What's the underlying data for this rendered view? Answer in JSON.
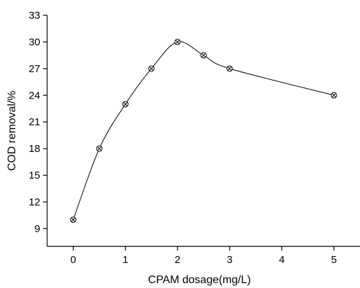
{
  "chart_data": {
    "type": "line",
    "xlabel": "CPAM dosage(mg/L)",
    "ylabel": "COD removal/%",
    "xlim": [
      -0.5,
      5.5
    ],
    "ylim": [
      7,
      33
    ],
    "xticks": [
      0,
      1,
      2,
      3,
      4,
      5
    ],
    "xtick_labels": [
      "0",
      "1",
      "2",
      "3",
      "4",
      "5"
    ],
    "yticks": [
      9,
      12,
      15,
      18,
      21,
      24,
      27,
      30,
      33
    ],
    "ytick_labels": [
      "9",
      "12",
      "15",
      "18",
      "21",
      "24",
      "27",
      "30",
      "33"
    ],
    "grid": false,
    "legend": "none",
    "marker": "circle-x",
    "smooth": true,
    "series": [
      {
        "x": [
          0,
          0.5,
          1,
          1.5,
          2,
          2.5,
          3,
          5
        ],
        "y": [
          10,
          18,
          23,
          27,
          30,
          28.5,
          27,
          24
        ]
      }
    ]
  }
}
